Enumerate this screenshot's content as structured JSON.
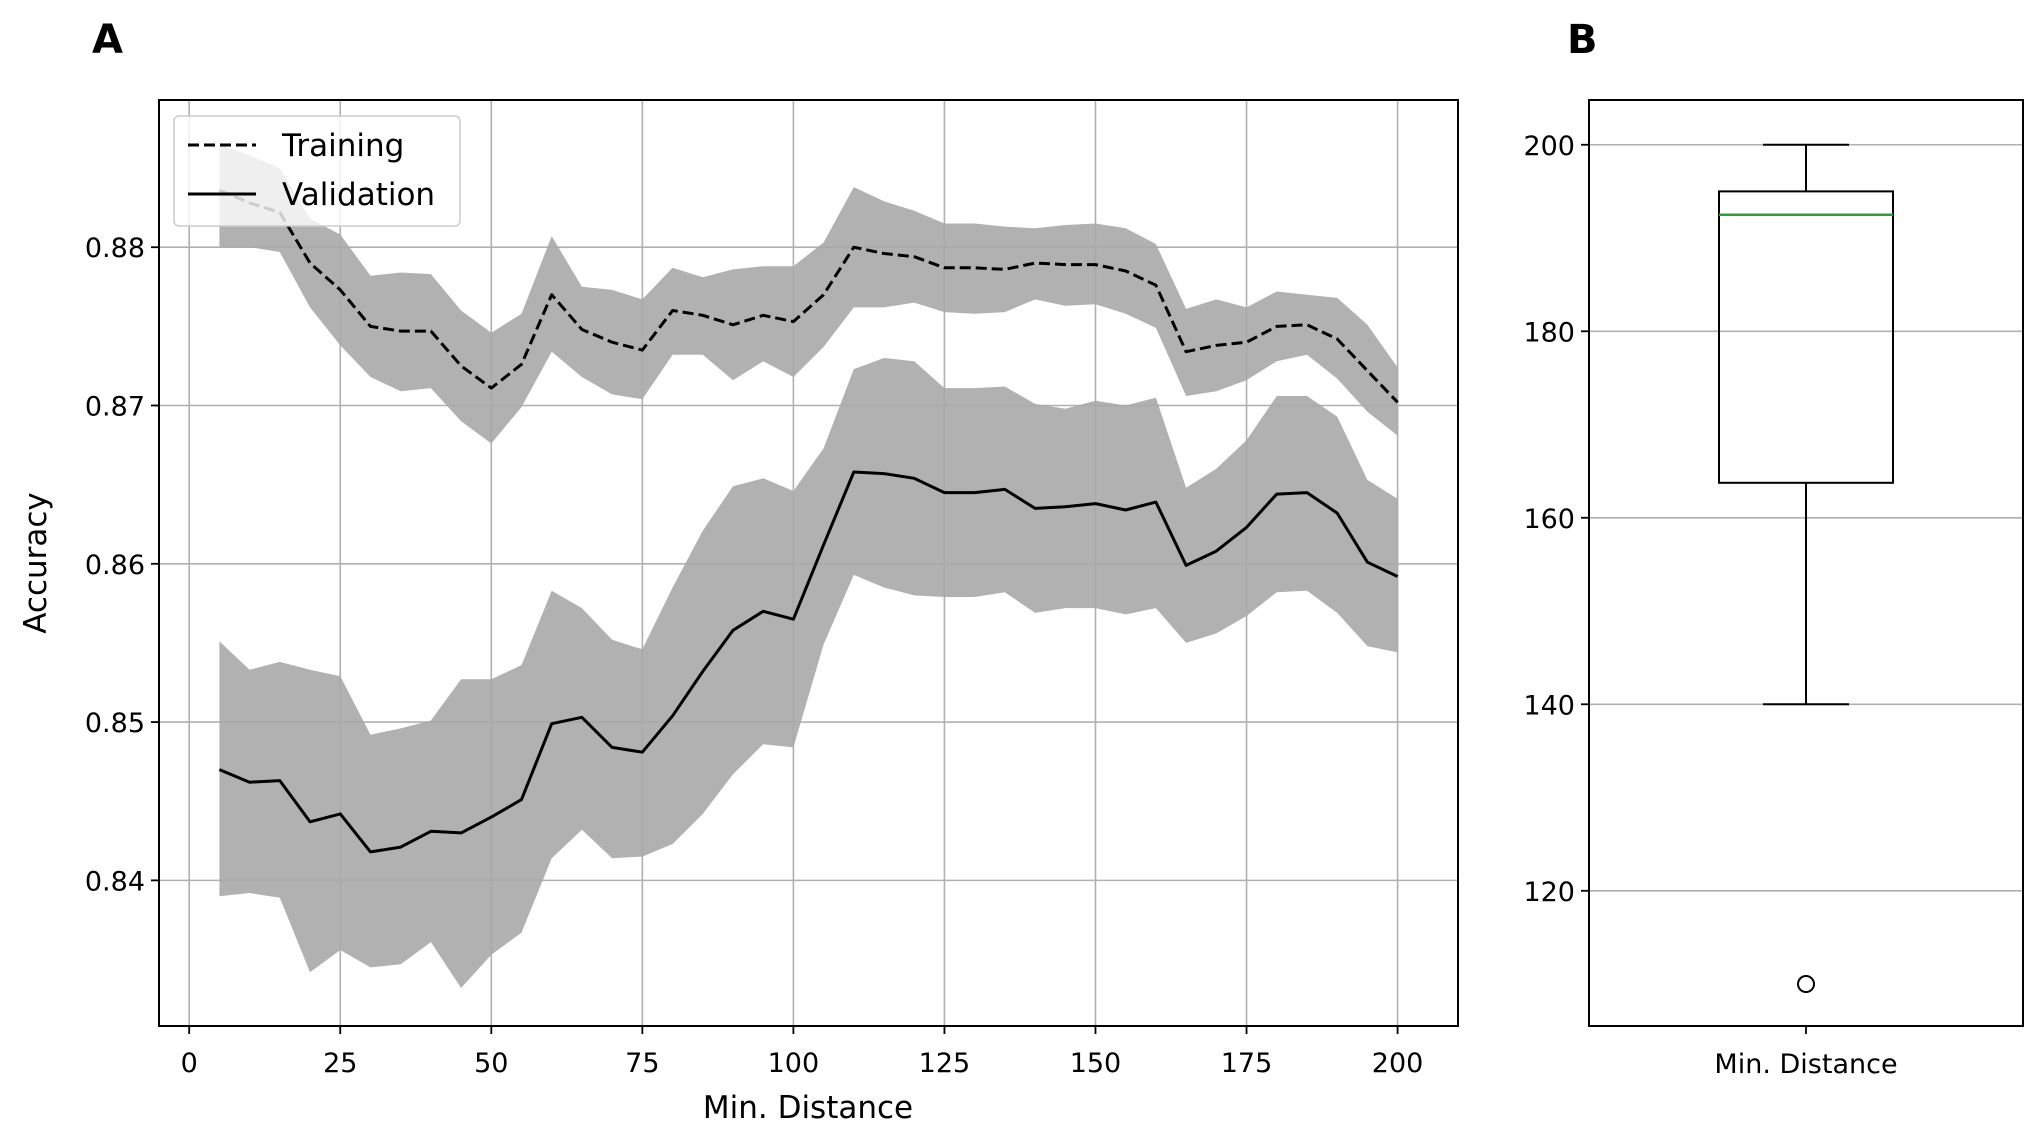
{
  "colors": {
    "band": "#a9a9a9",
    "line": "#000000",
    "median": "#2ca02c",
    "grid": "#b0b0b0"
  },
  "chart_data": [
    {
      "panel": "A",
      "type": "line",
      "xlabel": "Min. Distance",
      "ylabel": "Accuracy",
      "xlim": [
        -5,
        210
      ],
      "ylim": [
        0.8308,
        0.8893
      ],
      "xticks": [
        0,
        25,
        50,
        75,
        100,
        125,
        150,
        175,
        200
      ],
      "yticks": [
        0.84,
        0.85,
        0.86,
        0.87,
        0.88
      ],
      "grid": true,
      "legend_position": "top-left",
      "x": [
        5,
        10,
        15,
        20,
        25,
        30,
        35,
        40,
        45,
        50,
        55,
        60,
        65,
        70,
        75,
        80,
        85,
        90,
        95,
        100,
        105,
        110,
        115,
        120,
        125,
        130,
        135,
        140,
        145,
        150,
        155,
        160,
        165,
        170,
        175,
        180,
        185,
        190,
        195,
        200
      ],
      "series": [
        {
          "name": "Training",
          "style": "dashed",
          "values": [
            0.8836,
            0.8828,
            0.8822,
            0.879,
            0.8773,
            0.875,
            0.8747,
            0.8747,
            0.8725,
            0.8711,
            0.8726,
            0.877,
            0.8748,
            0.874,
            0.8735,
            0.876,
            0.8757,
            0.8751,
            0.8757,
            0.8753,
            0.877,
            0.88,
            0.8796,
            0.8794,
            0.8787,
            0.8787,
            0.8786,
            0.879,
            0.8789,
            0.8789,
            0.8785,
            0.8776,
            0.8734,
            0.8738,
            0.874,
            0.875,
            0.8751,
            0.8742,
            0.8722,
            0.8702
          ],
          "upper": [
            0.8865,
            0.8858,
            0.885,
            0.8818,
            0.8808,
            0.8782,
            0.8784,
            0.8783,
            0.876,
            0.8746,
            0.8758,
            0.8807,
            0.8775,
            0.8773,
            0.8767,
            0.8787,
            0.8781,
            0.8786,
            0.8788,
            0.8788,
            0.8803,
            0.8838,
            0.8829,
            0.8823,
            0.8815,
            0.8815,
            0.8813,
            0.8812,
            0.8814,
            0.8815,
            0.8812,
            0.8802,
            0.8761,
            0.8767,
            0.8762,
            0.8772,
            0.877,
            0.8768,
            0.8751,
            0.8724
          ],
          "lower": [
            0.88,
            0.88,
            0.8797,
            0.8762,
            0.8738,
            0.8718,
            0.8709,
            0.8711,
            0.869,
            0.8676,
            0.8699,
            0.8734,
            0.8718,
            0.8707,
            0.8704,
            0.8732,
            0.8732,
            0.8716,
            0.8728,
            0.8718,
            0.8737,
            0.8762,
            0.8762,
            0.8765,
            0.8759,
            0.8758,
            0.8759,
            0.8767,
            0.8763,
            0.8764,
            0.8758,
            0.8749,
            0.8706,
            0.8709,
            0.8716,
            0.8728,
            0.8732,
            0.8717,
            0.8696,
            0.8681
          ]
        },
        {
          "name": "Validation",
          "style": "solid",
          "values": [
            0.847,
            0.8462,
            0.8463,
            0.8437,
            0.8442,
            0.8418,
            0.8421,
            0.8431,
            0.843,
            0.844,
            0.8451,
            0.8499,
            0.8503,
            0.8484,
            0.8481,
            0.8504,
            0.8532,
            0.8558,
            0.857,
            0.8565,
            0.8612,
            0.8658,
            0.8657,
            0.8654,
            0.8645,
            0.8645,
            0.8647,
            0.8635,
            0.8636,
            0.8638,
            0.8634,
            0.8639,
            0.8599,
            0.8608,
            0.8623,
            0.8644,
            0.8645,
            0.8632,
            0.8601,
            0.8592
          ],
          "upper": [
            0.8551,
            0.8533,
            0.8538,
            0.8533,
            0.8529,
            0.8492,
            0.8496,
            0.8501,
            0.8527,
            0.8527,
            0.8536,
            0.8583,
            0.8572,
            0.8552,
            0.8546,
            0.8585,
            0.8621,
            0.8649,
            0.8654,
            0.8646,
            0.8673,
            0.8723,
            0.873,
            0.8728,
            0.8711,
            0.8711,
            0.8712,
            0.8701,
            0.8698,
            0.8703,
            0.87,
            0.8705,
            0.8648,
            0.866,
            0.8678,
            0.8706,
            0.8706,
            0.8693,
            0.8653,
            0.8641
          ],
          "lower": [
            0.839,
            0.8392,
            0.8389,
            0.8342,
            0.8356,
            0.8345,
            0.8347,
            0.8361,
            0.8332,
            0.8353,
            0.8367,
            0.8414,
            0.8432,
            0.8414,
            0.8415,
            0.8423,
            0.8442,
            0.8467,
            0.8486,
            0.8484,
            0.8549,
            0.8593,
            0.8585,
            0.858,
            0.8579,
            0.8579,
            0.8582,
            0.8569,
            0.8572,
            0.8572,
            0.8568,
            0.8572,
            0.855,
            0.8556,
            0.8567,
            0.8582,
            0.8583,
            0.8569,
            0.8548,
            0.8544
          ]
        }
      ]
    },
    {
      "panel": "B",
      "type": "box",
      "category": "Min. Distance",
      "ylim": [
        105.5,
        204.8
      ],
      "yticks": [
        120,
        140,
        160,
        180,
        200
      ],
      "grid": true,
      "whisker_low": 140,
      "q1": 163.75,
      "median": 192.5,
      "q3": 195,
      "whisker_high": 200,
      "outliers": [
        110
      ]
    }
  ]
}
